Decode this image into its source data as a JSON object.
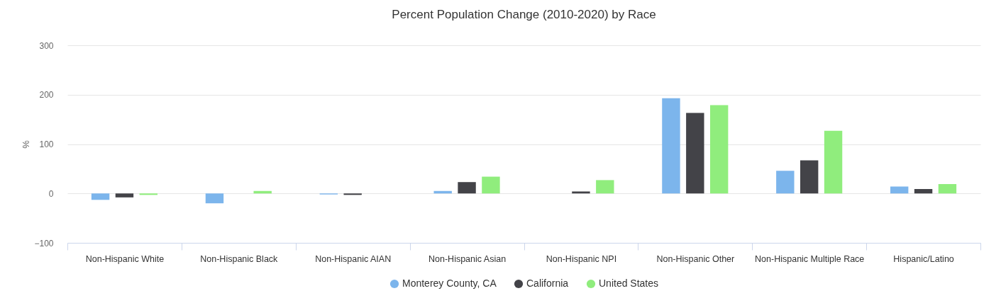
{
  "chart_data": {
    "type": "bar",
    "title": "Percent Population Change (2010-2020) by Race",
    "ylabel": "%",
    "categories": [
      "Non-Hispanic White",
      "Non-Hispanic Black",
      "Non-Hispanic AIAN",
      "Non-Hispanic Asian",
      "Non-Hispanic NPI",
      "Non-Hispanic Other",
      "Non-Hispanic Multiple Race",
      "Hispanic/Latino"
    ],
    "series": [
      {
        "name": "Monterey County, CA",
        "color": "#7cb5ec",
        "values": [
          -13,
          -20,
          -2,
          5,
          null,
          193,
          46,
          14
        ]
      },
      {
        "name": "California",
        "color": "#434348",
        "values": [
          -8,
          null,
          -3,
          23,
          4,
          163,
          67,
          9
        ]
      },
      {
        "name": "United States",
        "color": "#90ed7d",
        "values": [
          -3,
          5,
          null,
          34,
          27,
          179,
          127,
          19
        ]
      }
    ],
    "ylim": [
      -100,
      300
    ],
    "yticks": [
      -100,
      0,
      100,
      200,
      300
    ],
    "grid": "y",
    "legend": "bottom"
  }
}
